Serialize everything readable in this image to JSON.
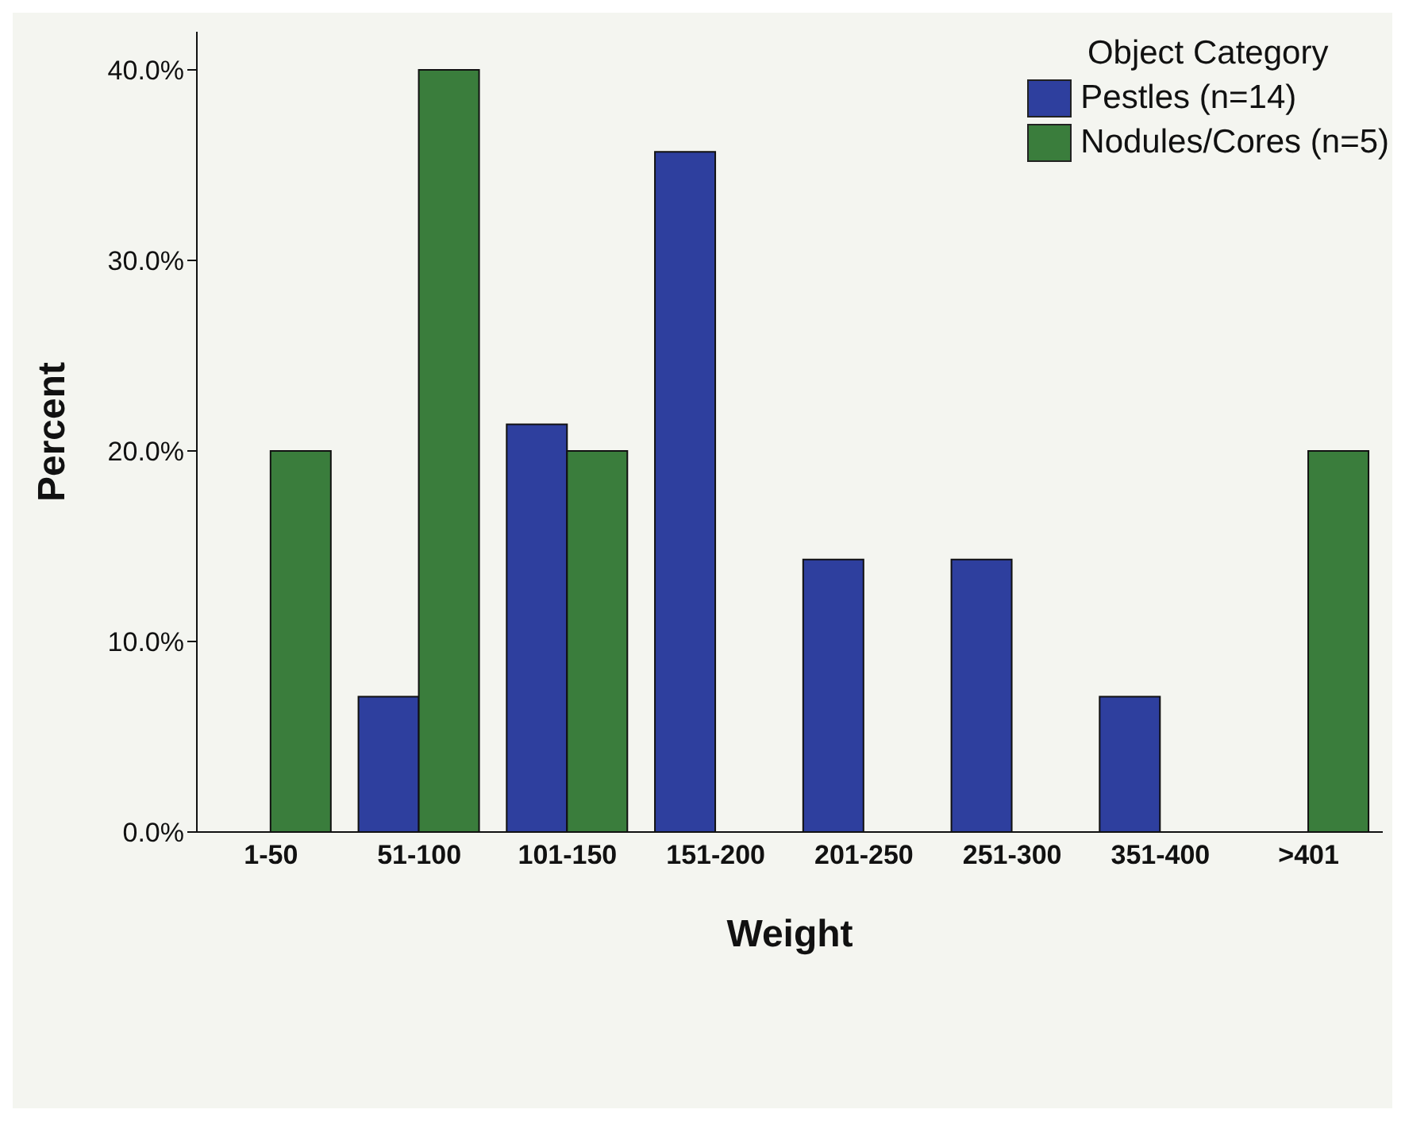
{
  "chart_data": {
    "type": "bar",
    "xlabel": "Weight",
    "ylabel": "Percent",
    "legend_title": "Object Category",
    "categories": [
      "1-50",
      "51-100",
      "101-150",
      "151-200",
      "201-250",
      "251-300",
      "351-400",
      ">401"
    ],
    "series": [
      {
        "name": "Pestles (n=14)",
        "color": "#2e3f9e",
        "values": [
          null,
          7.1,
          21.4,
          35.7,
          14.3,
          14.3,
          7.1,
          null
        ]
      },
      {
        "name": "Nodules/Cores (n=5)",
        "color": "#3a7d3c",
        "values": [
          20,
          40,
          20,
          null,
          null,
          null,
          null,
          20
        ]
      }
    ],
    "ylim": [
      0,
      42
    ],
    "yticks": [
      {
        "value": 0,
        "label": "0.0%"
      },
      {
        "value": 10,
        "label": "10.0%"
      },
      {
        "value": 20,
        "label": "20.0%"
      },
      {
        "value": 30,
        "label": "30.0%"
      },
      {
        "value": 40,
        "label": "40.0%"
      }
    ],
    "grid": false,
    "legend": "top right"
  }
}
